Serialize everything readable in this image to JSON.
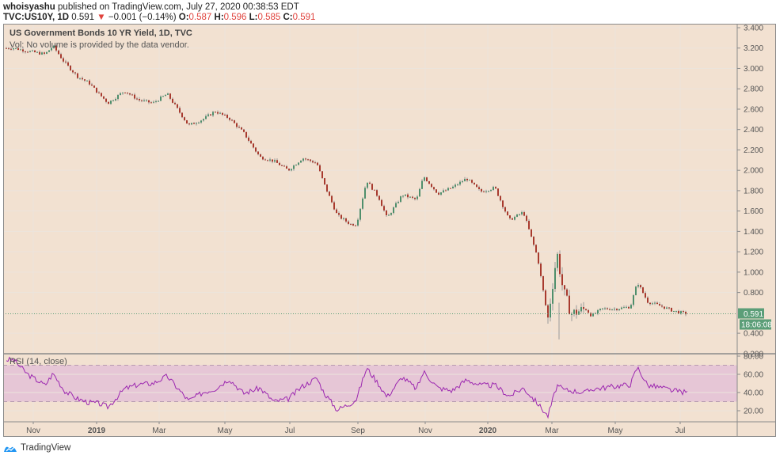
{
  "header": {
    "author": "whoisyashu",
    "published_text": " published on TradingView.com, July 27, 2020 00:38:53 EDT",
    "symbol": "TVC:US10Y, 1D",
    "last": "0.591",
    "change_arrow": "▼",
    "change": "−0.001 (−0.14%)",
    "open_label": "O:",
    "open": "0.587",
    "high_label": "H:",
    "high": "0.596",
    "low_label": "L:",
    "low": "0.585",
    "close_label": "C:",
    "close": "0.591"
  },
  "legend": {
    "title": "US Government Bonds 10 YR Yield, 1D, TVC",
    "volume_note": "Vol: No volume is provided by the data vendor.",
    "rsi_title": "RSI (14, close)"
  },
  "price_tags": {
    "last_price": "0.591",
    "countdown": "18:06:08"
  },
  "footer": {
    "brand": "TradingView"
  },
  "colors": {
    "background": "#f2e1d1",
    "grid": "#ece4dc",
    "up": "#4f8f6c",
    "down": "#a83a2e",
    "rsi_line": "#9c27b0",
    "rsi_band": "#e6c6d6",
    "last_price_tag": "#5b9e78",
    "axis_text": "#555555",
    "frame": "#8a8a8a"
  },
  "chart_data": [
    {
      "type": "candlestick",
      "title": "US Government Bonds 10 YR Yield, 1D, TVC",
      "xlabel": "",
      "ylabel": "Yield (%)",
      "ylim": [
        0.3,
        3.42
      ],
      "y_ticks": [
        "3.400",
        "3.200",
        "3.000",
        "2.800",
        "2.600",
        "2.400",
        "2.200",
        "2.000",
        "1.800",
        "1.600",
        "1.400",
        "1.200",
        "1.000",
        "0.800",
        "0.400",
        "0.200"
      ],
      "x_ticks": [
        "Nov",
        "2019",
        "Mar",
        "May",
        "Jul",
        "Sep",
        "Nov",
        "2020",
        "Mar",
        "May",
        "Jul"
      ],
      "grid": true,
      "last_value": 0.591,
      "x": [
        "2018-10-01",
        "2018-10-15",
        "2018-11-01",
        "2018-11-09",
        "2018-11-20",
        "2018-12-03",
        "2018-12-14",
        "2018-12-24",
        "2019-01-02",
        "2019-01-18",
        "2019-02-01",
        "2019-02-15",
        "2019-03-01",
        "2019-03-22",
        "2019-04-05",
        "2019-04-17",
        "2019-05-01",
        "2019-05-15",
        "2019-05-31",
        "2019-06-14",
        "2019-06-28",
        "2019-07-12",
        "2019-07-26",
        "2019-08-02",
        "2019-08-15",
        "2019-08-28",
        "2019-09-03",
        "2019-09-13",
        "2019-09-25",
        "2019-10-03",
        "2019-10-18",
        "2019-11-01",
        "2019-11-08",
        "2019-11-22",
        "2019-12-06",
        "2019-12-20",
        "2020-01-03",
        "2020-01-17",
        "2020-01-31",
        "2020-02-14",
        "2020-02-28",
        "2020-03-09",
        "2020-03-18",
        "2020-03-24",
        "2020-04-01",
        "2020-04-15",
        "2020-04-21",
        "2020-05-01",
        "2020-05-15",
        "2020-05-29",
        "2020-06-05",
        "2020-06-15",
        "2020-06-30",
        "2020-07-10",
        "2020-07-24"
      ],
      "series": [
        {
          "name": "Close",
          "values": [
            3.2,
            3.17,
            3.14,
            3.22,
            3.06,
            2.92,
            2.86,
            2.75,
            2.66,
            2.78,
            2.69,
            2.66,
            2.75,
            2.44,
            2.5,
            2.58,
            2.51,
            2.37,
            2.13,
            2.09,
            2.0,
            2.12,
            2.07,
            1.87,
            1.56,
            1.47,
            1.47,
            1.9,
            1.73,
            1.53,
            1.76,
            1.71,
            1.94,
            1.77,
            1.83,
            1.92,
            1.79,
            1.83,
            1.51,
            1.59,
            1.14,
            0.54,
            1.19,
            0.82,
            0.59,
            0.64,
            0.57,
            0.64,
            0.64,
            0.66,
            0.9,
            0.71,
            0.66,
            0.62,
            0.59
          ]
        }
      ]
    },
    {
      "type": "line",
      "title": "RSI (14, close)",
      "ylim": [
        10,
        80
      ],
      "y_ticks": [
        "80.00",
        "60.00",
        "40.00",
        "20.00"
      ],
      "bands": {
        "upper": 70,
        "lower": 30
      },
      "x_ticks": [
        "Nov",
        "2019",
        "Mar",
        "May",
        "Jul",
        "Sep",
        "Nov",
        "2020",
        "Mar",
        "May",
        "Jul"
      ],
      "x": [
        "2018-10-01",
        "2018-10-15",
        "2018-11-01",
        "2018-11-09",
        "2018-11-20",
        "2018-12-03",
        "2018-12-14",
        "2018-12-24",
        "2019-01-02",
        "2019-01-18",
        "2019-02-01",
        "2019-02-15",
        "2019-03-01",
        "2019-03-22",
        "2019-04-05",
        "2019-04-17",
        "2019-05-01",
        "2019-05-15",
        "2019-05-31",
        "2019-06-14",
        "2019-06-28",
        "2019-07-12",
        "2019-07-26",
        "2019-08-02",
        "2019-08-15",
        "2019-08-28",
        "2019-09-03",
        "2019-09-13",
        "2019-09-25",
        "2019-10-03",
        "2019-10-18",
        "2019-11-01",
        "2019-11-08",
        "2019-11-22",
        "2019-12-06",
        "2019-12-20",
        "2020-01-03",
        "2020-01-17",
        "2020-01-31",
        "2020-02-14",
        "2020-02-28",
        "2020-03-09",
        "2020-03-18",
        "2020-03-24",
        "2020-04-01",
        "2020-04-15",
        "2020-04-21",
        "2020-05-01",
        "2020-05-15",
        "2020-05-29",
        "2020-06-05",
        "2020-06-15",
        "2020-06-30",
        "2020-07-10",
        "2020-07-24"
      ],
      "series": [
        {
          "name": "RSI",
          "values": [
            76,
            60,
            48,
            61,
            42,
            33,
            29,
            28,
            24,
            44,
            49,
            50,
            58,
            31,
            40,
            44,
            55,
            39,
            45,
            30,
            33,
            47,
            56,
            40,
            21,
            28,
            33,
            67,
            49,
            35,
            57,
            44,
            63,
            45,
            42,
            54,
            48,
            48,
            36,
            45,
            28,
            14,
            48,
            43,
            42,
            40,
            44,
            45,
            47,
            49,
            68,
            48,
            45,
            42,
            40
          ]
        }
      ]
    }
  ]
}
